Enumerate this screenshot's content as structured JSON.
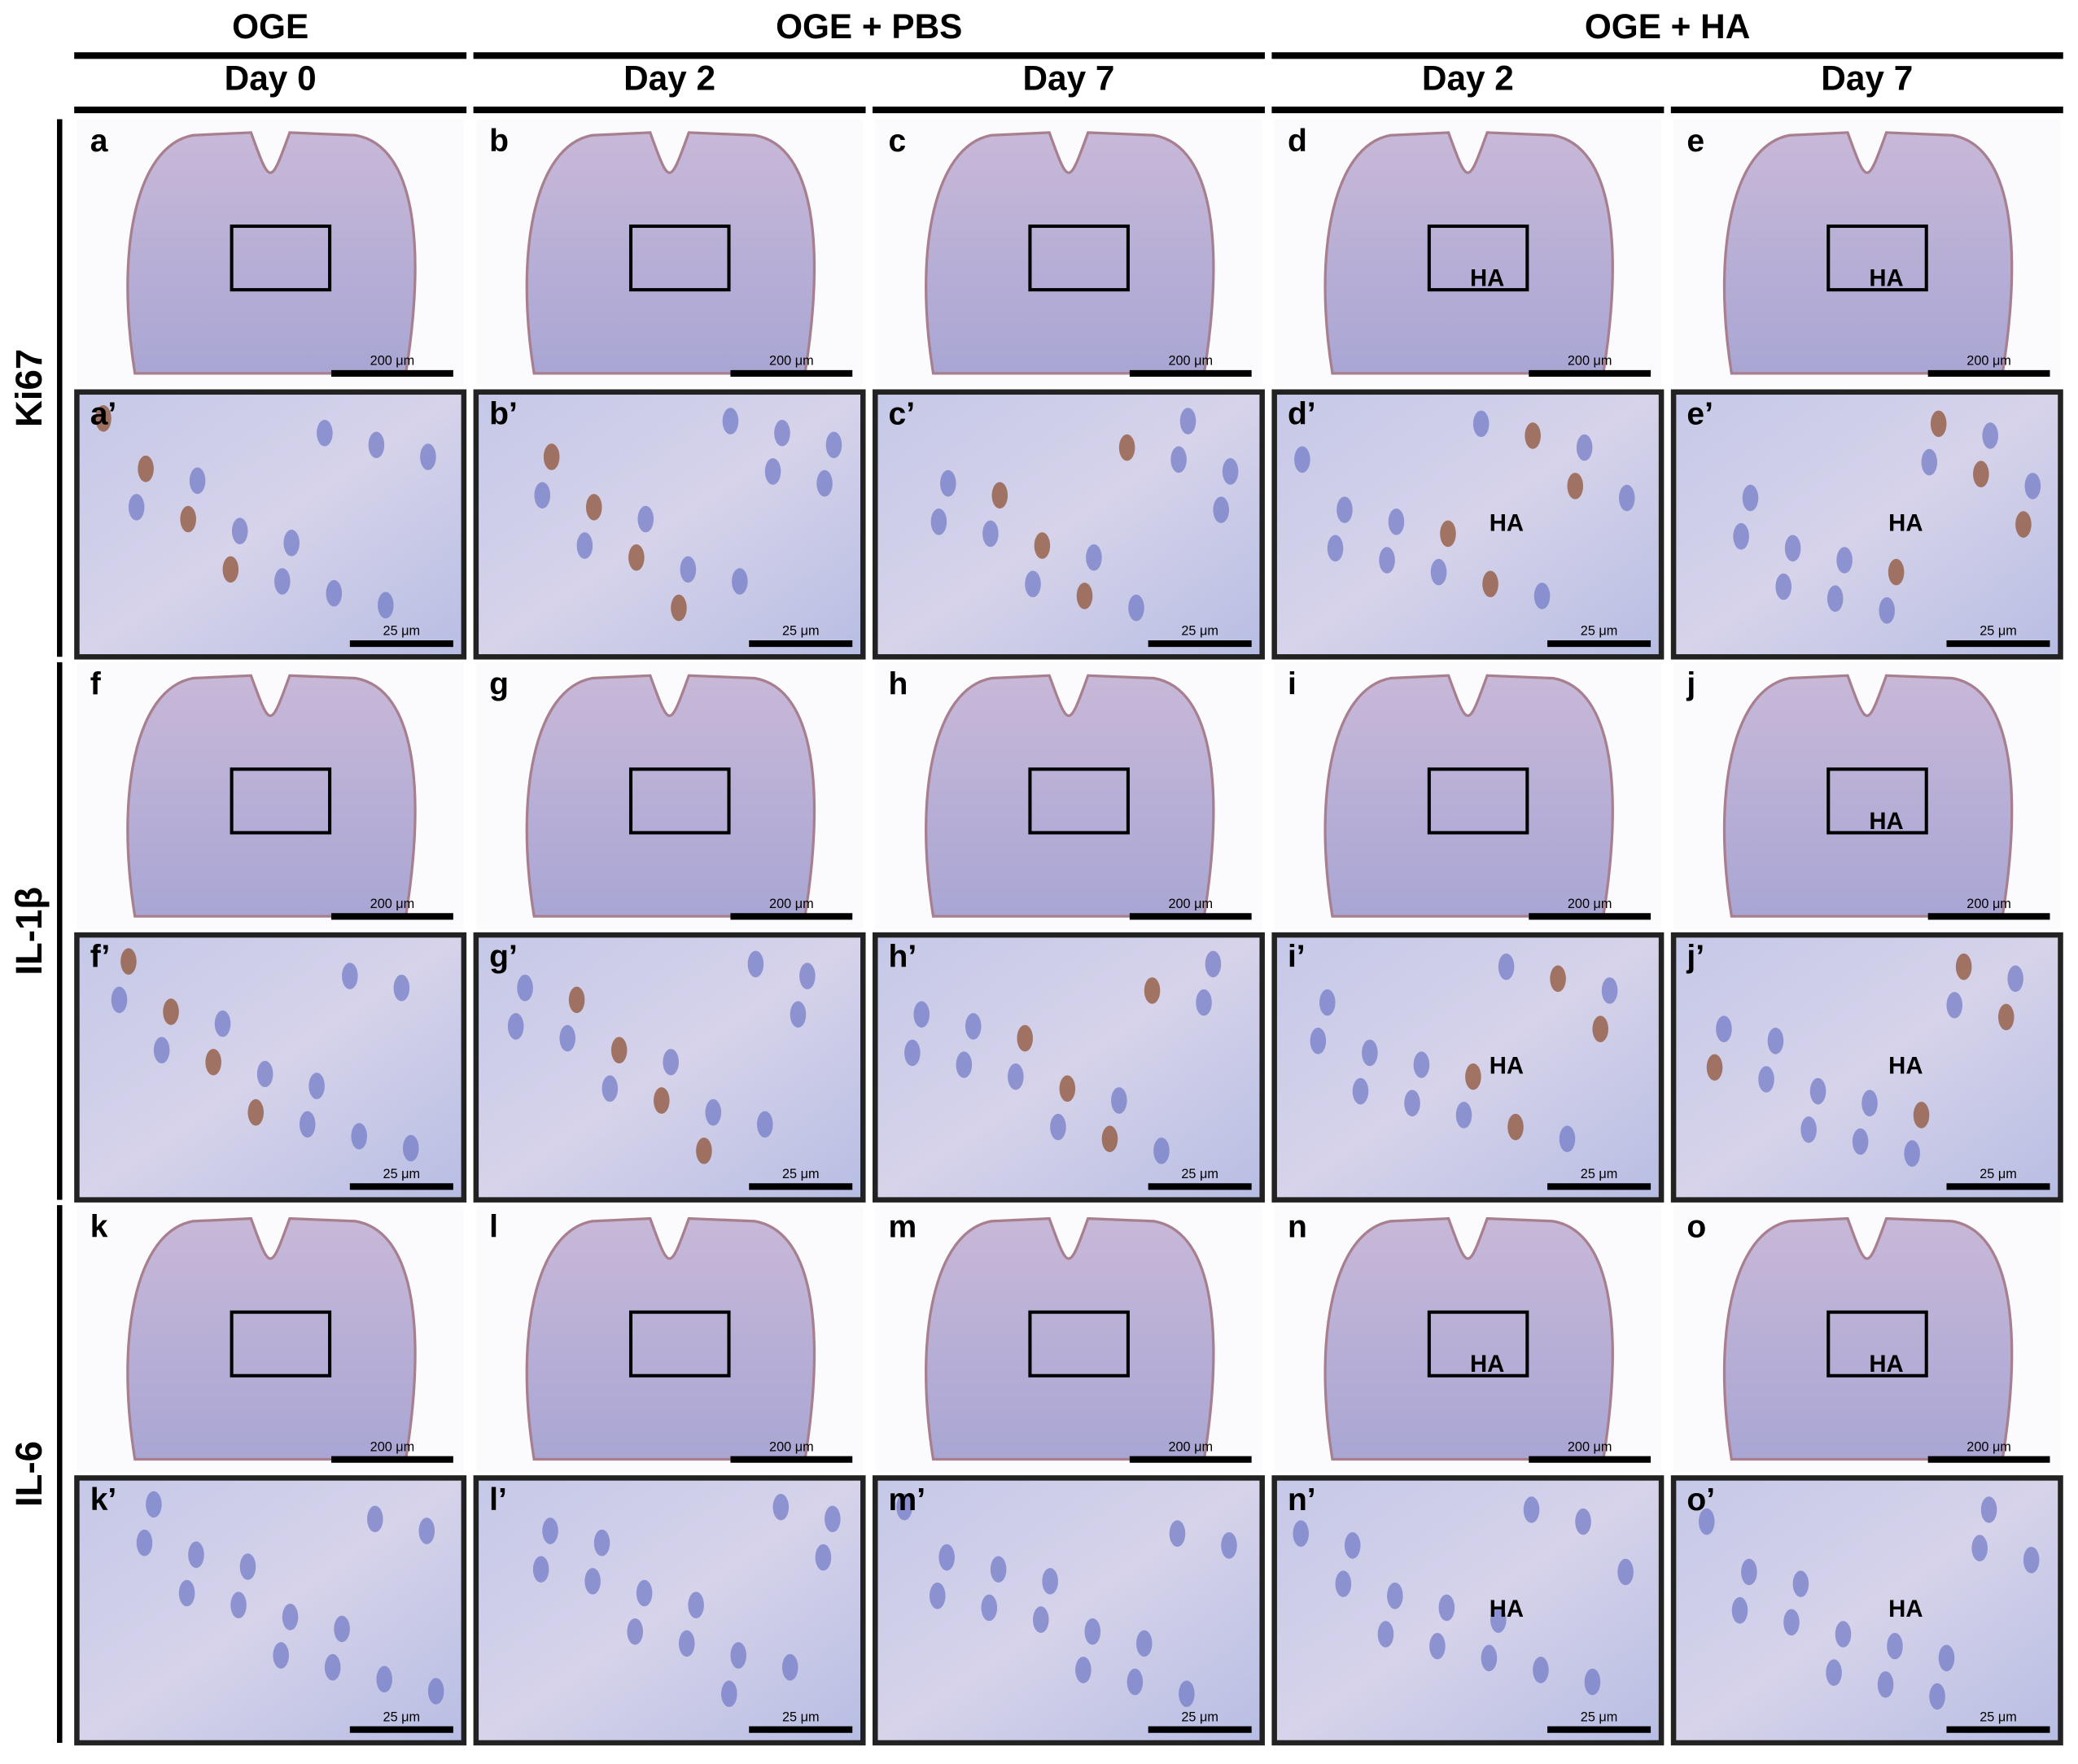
{
  "groups": [
    {
      "label": "OGE",
      "days": [
        "Day 0"
      ]
    },
    {
      "label": "OGE + PBS",
      "days": [
        "Day 2",
        "Day 7"
      ]
    },
    {
      "label": "OGE + HA",
      "days": [
        "Day 2",
        "Day 7"
      ]
    }
  ],
  "rows": [
    {
      "label": "Ki67",
      "overview": [
        {
          "letter": "a",
          "scale_bar": "200 μm"
        },
        {
          "letter": "b",
          "scale_bar": "200 μm"
        },
        {
          "letter": "c",
          "scale_bar": "200 μm"
        },
        {
          "letter": "d",
          "scale_bar": "200 μm",
          "labels": [
            "HA"
          ]
        },
        {
          "letter": "e",
          "scale_bar": "200 μm",
          "labels": [
            "HA"
          ]
        }
      ],
      "zoom": [
        {
          "letter": "a’",
          "scale_bar": "25 μm"
        },
        {
          "letter": "b’",
          "scale_bar": "25 μm"
        },
        {
          "letter": "c’",
          "scale_bar": "25 μm"
        },
        {
          "letter": "d’",
          "scale_bar": "25 μm",
          "labels": [
            "HA"
          ]
        },
        {
          "letter": "e’",
          "scale_bar": "25 μm",
          "labels": [
            "HA"
          ]
        }
      ]
    },
    {
      "label": "IL-1β",
      "overview": [
        {
          "letter": "f",
          "scale_bar": "200 μm"
        },
        {
          "letter": "g",
          "scale_bar": "200 μm"
        },
        {
          "letter": "h",
          "scale_bar": "200 μm"
        },
        {
          "letter": "i",
          "scale_bar": "200 μm"
        },
        {
          "letter": "j",
          "scale_bar": "200 μm",
          "labels": [
            "HA"
          ]
        }
      ],
      "zoom": [
        {
          "letter": "f’",
          "scale_bar": "25 μm"
        },
        {
          "letter": "g’",
          "scale_bar": "25 μm"
        },
        {
          "letter": "h’",
          "scale_bar": "25 μm"
        },
        {
          "letter": "i’",
          "scale_bar": "25 μm",
          "labels": [
            "HA"
          ]
        },
        {
          "letter": "j’",
          "scale_bar": "25 μm",
          "labels": [
            "HA"
          ]
        }
      ]
    },
    {
      "label": "IL-6",
      "overview": [
        {
          "letter": "k",
          "scale_bar": "200 μm"
        },
        {
          "letter": "l",
          "scale_bar": "200 μm"
        },
        {
          "letter": "m",
          "scale_bar": "200 μm"
        },
        {
          "letter": "n",
          "scale_bar": "200 μm",
          "labels": [
            "HA"
          ]
        },
        {
          "letter": "o",
          "scale_bar": "200 μm",
          "labels": [
            "HA"
          ]
        }
      ],
      "zoom": [
        {
          "letter": "k’",
          "scale_bar": "25 μm"
        },
        {
          "letter": "l’",
          "scale_bar": "25 μm"
        },
        {
          "letter": "m’",
          "scale_bar": "25 μm"
        },
        {
          "letter": "n’",
          "scale_bar": "25 μm",
          "labels": [
            "HA"
          ]
        },
        {
          "letter": "o’",
          "scale_bar": "25 μm",
          "labels": [
            "HA"
          ]
        }
      ]
    }
  ]
}
